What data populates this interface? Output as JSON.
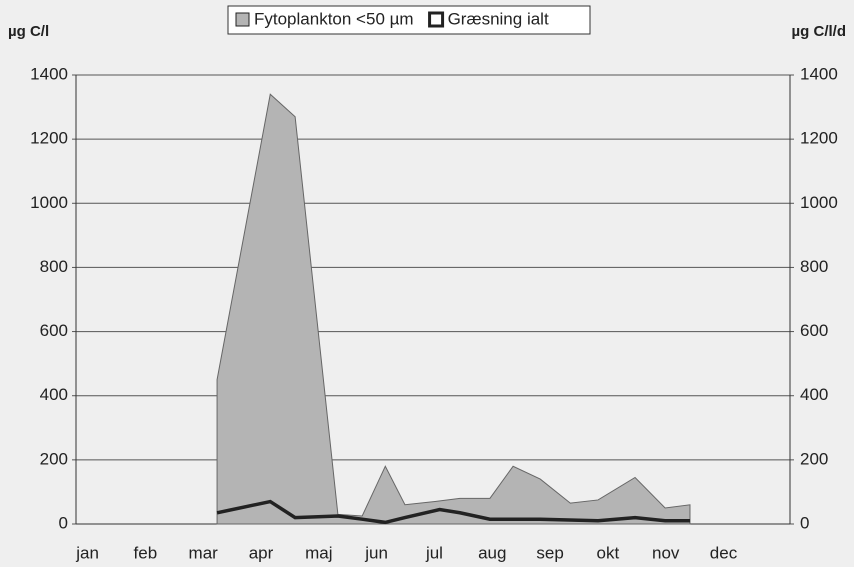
{
  "chart_data": {
    "type": "area-line",
    "y_label": "µg C/l",
    "y2_label": "µg C/l/d",
    "xlim": [
      -0.2,
      12.15
    ],
    "xticks": [
      {
        "value": 0,
        "label": "jan"
      },
      {
        "value": 1,
        "label": "feb"
      },
      {
        "value": 2,
        "label": "mar"
      },
      {
        "value": 3,
        "label": "apr"
      },
      {
        "value": 4,
        "label": "maj"
      },
      {
        "value": 5,
        "label": "jun"
      },
      {
        "value": 6,
        "label": "jul"
      },
      {
        "value": 7,
        "label": "aug"
      },
      {
        "value": 8,
        "label": "sep"
      },
      {
        "value": 9,
        "label": "okt"
      },
      {
        "value": 10,
        "label": "nov"
      },
      {
        "value": 11,
        "label": "dec"
      }
    ],
    "ylim": [
      0,
      1400
    ],
    "yticks": [
      0,
      200,
      400,
      600,
      800,
      1000,
      1200,
      1400
    ],
    "y2lim": [
      0,
      1400
    ],
    "y2ticks": [
      0,
      200,
      400,
      600,
      800,
      1000,
      1200,
      1400
    ],
    "grid": true,
    "series": [
      {
        "name": "Fytoplankton <50 µm",
        "kind": "area",
        "color": "#b4b4b4",
        "x": [
          2.24,
          3.16,
          3.59,
          4.33,
          4.75,
          5.15,
          5.49,
          6.01,
          6.44,
          6.96,
          7.36,
          7.83,
          8.35,
          8.83,
          9.47,
          9.99,
          10.42
        ],
        "values": [
          450,
          1340,
          1270,
          30,
          25,
          180,
          60,
          70,
          80,
          80,
          180,
          140,
          65,
          75,
          145,
          50,
          60
        ]
      },
      {
        "name": "Græsning ialt",
        "kind": "line",
        "axis": "y2",
        "color": "#222222",
        "x": [
          2.24,
          3.16,
          3.59,
          4.33,
          4.75,
          5.15,
          5.49,
          6.09,
          6.44,
          6.96,
          7.83,
          8.83,
          9.47,
          9.99,
          10.42
        ],
        "values": [
          35,
          70,
          20,
          25,
          15,
          5,
          20,
          45,
          35,
          15,
          15,
          10,
          20,
          10,
          10
        ]
      }
    ]
  }
}
